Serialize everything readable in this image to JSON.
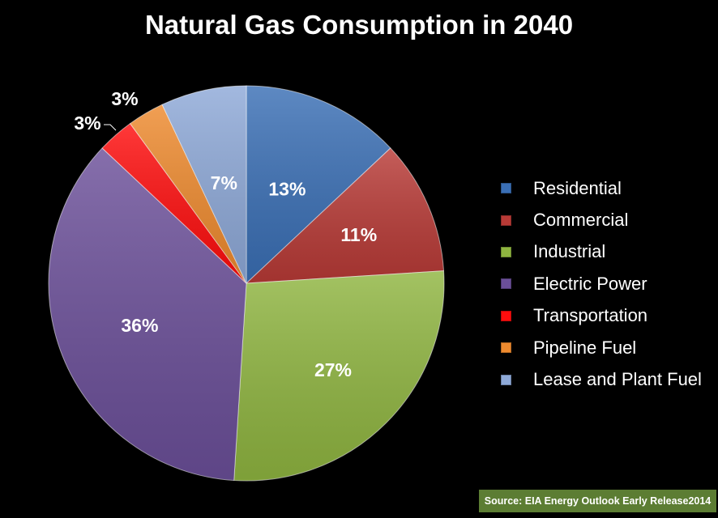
{
  "chart_data": {
    "type": "pie",
    "title": "Natural Gas Consumption in 2040",
    "labels": [
      "Residential",
      "Commercial",
      "Industrial",
      "Electric Power",
      "Transportation",
      "Pipeline Fuel",
      "Lease and Plant Fuel"
    ],
    "values": [
      13,
      11,
      27,
      36,
      3,
      3,
      7
    ],
    "data_labels": [
      "13%",
      "11%",
      "27%",
      "36%",
      "3%",
      "3%",
      "7%"
    ],
    "colors": [
      "#3a6fb5",
      "#b83a36",
      "#8fb540",
      "#6b4f99",
      "#ff0d0d",
      "#ee8a2e",
      "#8ea9d8"
    ],
    "legend_position": "right",
    "start": "top, clockwise"
  },
  "source": "Source: EIA Energy Outlook Early Release2014"
}
